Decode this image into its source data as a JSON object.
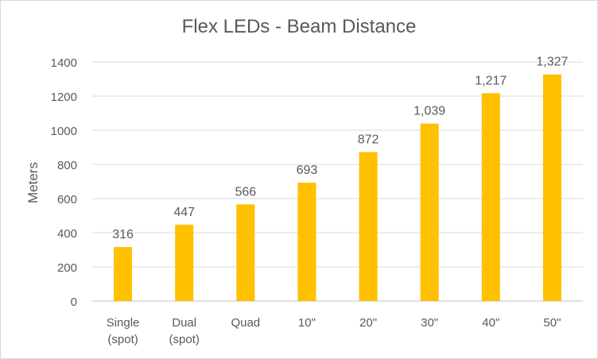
{
  "chart_data": {
    "type": "bar",
    "title": "Flex LEDs - Beam Distance",
    "xlabel": "",
    "ylabel": "Meters",
    "categories": [
      [
        "Single",
        "(spot)"
      ],
      [
        "Dual",
        "(spot)"
      ],
      [
        "Quad"
      ],
      [
        "10\""
      ],
      [
        "20\""
      ],
      [
        "30\""
      ],
      [
        "40\""
      ],
      [
        "50\""
      ]
    ],
    "values": [
      316,
      447,
      566,
      693,
      872,
      1039,
      1217,
      1327
    ],
    "data_labels": [
      "316",
      "447",
      "566",
      "693",
      "872",
      "1,039",
      "1,217",
      "1,327"
    ],
    "ylim": [
      0,
      1400
    ],
    "yticks": [
      0,
      200,
      400,
      600,
      800,
      1000,
      1200,
      1400
    ],
    "grid": true,
    "legend": "none",
    "bar_color": "#ffc000",
    "grid_color": "#d9d9d9",
    "text_color": "#595959"
  }
}
